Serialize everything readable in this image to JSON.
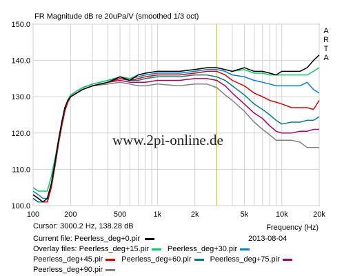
{
  "chart_data": {
    "type": "line",
    "title": "FR Magnitude dB re 20uPa/V (smoothed 1/3 oct)",
    "xlabel": "Frequency (Hz)",
    "xscale": "log",
    "xlim": [
      100,
      20000
    ],
    "ylim": [
      100,
      150
    ],
    "xticks": [
      100,
      200,
      500,
      1000,
      2000,
      5000,
      10000,
      20000
    ],
    "xtick_labels": [
      "100",
      "200",
      "500",
      "1k",
      "2k",
      "5k",
      "10k",
      "20k"
    ],
    "yticks": [
      100,
      110,
      120,
      130,
      140,
      150
    ],
    "ytick_labels": [
      "100.0",
      "110.0",
      "120.0",
      "130.0",
      "140.0",
      "150.0"
    ],
    "grid": true,
    "cursor_freq": 3000.2,
    "brand_letters": [
      "A",
      "R",
      "T",
      "A"
    ],
    "watermark": "www.2pi-online.de",
    "x": [
      100,
      110,
      120,
      130,
      140,
      150,
      160,
      170,
      180,
      190,
      200,
      250,
      300,
      400,
      500,
      600,
      700,
      800,
      1000,
      1500,
      2000,
      2500,
      3000,
      3500,
      4000,
      5000,
      6000,
      7000,
      8000,
      9000,
      10000,
      12000,
      14000,
      16000,
      18000,
      20000
    ],
    "series": [
      {
        "name": "Peerless_deg+0.pir",
        "color": "#000000",
        "values": [
          103,
          102,
          101,
          102,
          106,
          112,
          118,
          123,
          127,
          129,
          130,
          132,
          133,
          134,
          135.5,
          134.5,
          136,
          136.5,
          137,
          137,
          137.5,
          138,
          138,
          137.5,
          137,
          138,
          137,
          137,
          136.5,
          136,
          137,
          137,
          137,
          138,
          140,
          141.5
        ]
      },
      {
        "name": "Peerless_deg+15.pir",
        "color": "#00d060",
        "values": [
          105,
          104,
          104,
          104,
          108,
          113,
          118,
          123,
          127,
          129,
          130.5,
          132.5,
          133.5,
          134.5,
          135.5,
          135,
          136,
          136.5,
          137,
          137,
          137.5,
          138,
          138,
          137.5,
          137,
          137.5,
          136.5,
          136.5,
          136,
          136,
          136,
          136,
          136,
          136,
          137,
          138
        ]
      },
      {
        "name": "Peerless_deg+30.pir",
        "color": "#0080e0",
        "values": [
          104,
          103,
          102,
          102,
          106,
          112,
          118,
          123,
          127,
          129,
          130.5,
          132.5,
          133.5,
          134.5,
          135.5,
          135,
          135.5,
          136,
          136.5,
          136.5,
          137,
          137.5,
          137.5,
          137,
          136,
          135.5,
          134.5,
          134,
          133.5,
          133,
          133,
          133,
          133,
          134,
          132,
          131
        ]
      },
      {
        "name": "Peerless_deg+45.pir",
        "color": "#e00000",
        "values": [
          103,
          102,
          101,
          101,
          105,
          111,
          117,
          122,
          126,
          128.5,
          130,
          132,
          133,
          134,
          135,
          134.5,
          135,
          135.5,
          136,
          136,
          136.5,
          137,
          137,
          136,
          134.5,
          133,
          131,
          130,
          129,
          128.5,
          128,
          127,
          127,
          127,
          126.5,
          129
        ]
      },
      {
        "name": "Peerless_deg+60.pir",
        "color": "#008080",
        "values": [
          102,
          101,
          101,
          101,
          105,
          111,
          117,
          122,
          126,
          128.5,
          130,
          132,
          133,
          134,
          135,
          134.5,
          134.5,
          135,
          135.5,
          135.5,
          136,
          136,
          135.5,
          134.5,
          133,
          130.5,
          128,
          126.5,
          125,
          123.5,
          122.5,
          123,
          123,
          123.5,
          123.5,
          124.5
        ]
      },
      {
        "name": "Peerless_deg+75.pir",
        "color": "#b0006a",
        "values": [
          102,
          101,
          101,
          101,
          105,
          111,
          117,
          122,
          126,
          128.5,
          130,
          132,
          133,
          134,
          134.5,
          134,
          134,
          134,
          134.5,
          134.5,
          135,
          135,
          134.5,
          133,
          131,
          128,
          125.5,
          124,
          122,
          120.5,
          120,
          120,
          120.5,
          120.5,
          121,
          121
        ]
      },
      {
        "name": "Peerless_deg+90.pir",
        "color": "#808080",
        "values": [
          102,
          101,
          101,
          101,
          105,
          111,
          117,
          122,
          126,
          128.5,
          130,
          132,
          133,
          133.5,
          134,
          133.5,
          133,
          133,
          133.5,
          133,
          133.5,
          133.5,
          132.5,
          130.5,
          129,
          126,
          123,
          121,
          119.5,
          118,
          118,
          118,
          117.5,
          116,
          116,
          116
        ]
      }
    ]
  },
  "cursor_readout": "Cursor: 3000.2 Hz, 138.28 dB",
  "current_file_label": "Current file:",
  "current_file": "Peerless_deg+0.pir",
  "date": "2013-08-04",
  "overlay_label": "Overlay files:",
  "overlay_files": [
    {
      "name": "Peerless_deg+15.pir",
      "color": "#00d060"
    },
    {
      "name": "Peerless_deg+30.pir",
      "color": "#0080e0"
    },
    {
      "name": "Peerless_deg+45.pir",
      "color": "#e00000"
    },
    {
      "name": "Peerless_deg+60.pir",
      "color": "#008080"
    },
    {
      "name": "Peerless_deg+75.pir",
      "color": "#b0006a"
    },
    {
      "name": "Peerless_deg+90.pir",
      "color": "#808080"
    }
  ],
  "current_file_color": "#000000",
  "cursor_color": "#c8c800"
}
